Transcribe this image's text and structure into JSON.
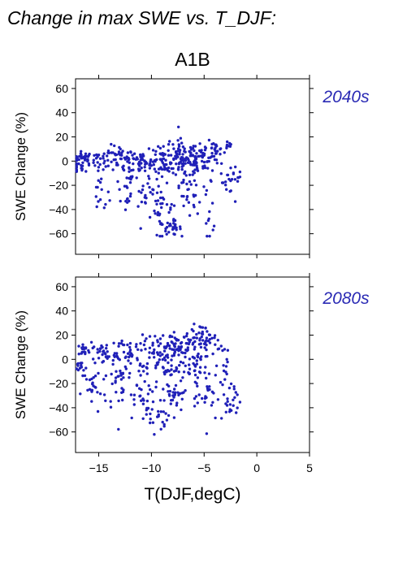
{
  "page_title": "Change in max SWE vs. T_DJF:",
  "scenario_title": "A1B",
  "xlabel": "T(DJF,degC)",
  "colors": {
    "points": "#2020b8",
    "panel_label": "#2a2ab4",
    "axes": "#000000"
  },
  "chart_data": [
    {
      "type": "scatter",
      "panel_label": "2040s",
      "xlabel": "T(DJF,degC)",
      "ylabel": "SWE Change (%)",
      "xlim": [
        -17.2,
        5
      ],
      "ylim": [
        -77,
        68
      ],
      "xticks": [
        -15,
        -10,
        -5,
        0,
        5
      ],
      "yticks": [
        -60,
        -40,
        -20,
        0,
        20,
        40,
        60
      ],
      "xtick_labels": [
        "−15",
        "−10",
        "−5",
        "0",
        "5"
      ],
      "ytick_labels": [
        "−60",
        "−40",
        "−20",
        "0",
        "20",
        "40",
        "60"
      ],
      "grid": false,
      "clusters": [
        {
          "x": -16.5,
          "y": 2,
          "sx": 0.5,
          "sy": 3,
          "n": 30
        },
        {
          "x": -16.8,
          "y": -7,
          "sx": 0.4,
          "sy": 2,
          "n": 10
        },
        {
          "x": -15.0,
          "y": 1,
          "sx": 0.6,
          "sy": 4,
          "n": 25
        },
        {
          "x": -14.8,
          "y": -28,
          "sx": 0.4,
          "sy": 8,
          "n": 15
        },
        {
          "x": -13.0,
          "y": 3,
          "sx": 0.7,
          "sy": 5,
          "n": 40
        },
        {
          "x": -12.5,
          "y": -20,
          "sx": 0.5,
          "sy": 12,
          "n": 25
        },
        {
          "x": -11.0,
          "y": 0,
          "sx": 0.8,
          "sy": 6,
          "n": 40
        },
        {
          "x": -10.5,
          "y": -28,
          "sx": 0.5,
          "sy": 12,
          "n": 25
        },
        {
          "x": -9.0,
          "y": 0,
          "sx": 0.8,
          "sy": 7,
          "n": 60
        },
        {
          "x": -9.0,
          "y": -40,
          "sx": 0.5,
          "sy": 10,
          "n": 30
        },
        {
          "x": -8.0,
          "y": -55,
          "sx": 0.4,
          "sy": 3,
          "n": 25
        },
        {
          "x": -7.0,
          "y": 2,
          "sx": 1.0,
          "sy": 8,
          "n": 80
        },
        {
          "x": -6.5,
          "y": -25,
          "sx": 0.6,
          "sy": 12,
          "n": 40
        },
        {
          "x": -5.0,
          "y": 3,
          "sx": 0.8,
          "sy": 6,
          "n": 50
        },
        {
          "x": -4.0,
          "y": 8,
          "sx": 0.4,
          "sy": 4,
          "n": 20
        },
        {
          "x": -4.5,
          "y": -35,
          "sx": 0.4,
          "sy": 12,
          "n": 15
        },
        {
          "x": -3.0,
          "y": -20,
          "sx": 0.4,
          "sy": 8,
          "n": 15
        },
        {
          "x": -2.7,
          "y": 13,
          "sx": 0.2,
          "sy": 2,
          "n": 8
        },
        {
          "x": -2.0,
          "y": -10,
          "sx": 0.3,
          "sy": 3,
          "n": 10
        }
      ]
    },
    {
      "type": "scatter",
      "panel_label": "2080s",
      "xlabel": "T(DJF,degC)",
      "ylabel": "SWE Change (%)",
      "xlim": [
        -17.2,
        5
      ],
      "ylim": [
        -77,
        68
      ],
      "xticks": [
        -15,
        -10,
        -5,
        0,
        5
      ],
      "yticks": [
        -60,
        -40,
        -20,
        0,
        20,
        40,
        60
      ],
      "xtick_labels": [
        "−15",
        "−10",
        "−5",
        "0",
        "5"
      ],
      "ytick_labels": [
        "−60",
        "−40",
        "−20",
        "0",
        "20",
        "40",
        "60"
      ],
      "grid": false,
      "clusters": [
        {
          "x": -16.5,
          "y": 8,
          "sx": 0.4,
          "sy": 3,
          "n": 20
        },
        {
          "x": -16.8,
          "y": -8,
          "sx": 0.4,
          "sy": 3,
          "n": 12
        },
        {
          "x": -15.5,
          "y": -25,
          "sx": 0.6,
          "sy": 10,
          "n": 25
        },
        {
          "x": -14.5,
          "y": 5,
          "sx": 0.6,
          "sy": 5,
          "n": 30
        },
        {
          "x": -13.0,
          "y": -15,
          "sx": 0.7,
          "sy": 15,
          "n": 40
        },
        {
          "x": -12.0,
          "y": 8,
          "sx": 0.6,
          "sy": 5,
          "n": 30
        },
        {
          "x": -11.0,
          "y": -20,
          "sx": 0.6,
          "sy": 15,
          "n": 35
        },
        {
          "x": -9.5,
          "y": 5,
          "sx": 0.8,
          "sy": 8,
          "n": 50
        },
        {
          "x": -9.5,
          "y": -45,
          "sx": 0.5,
          "sy": 8,
          "n": 25
        },
        {
          "x": -8.0,
          "y": -25,
          "sx": 0.7,
          "sy": 15,
          "n": 50
        },
        {
          "x": -7.0,
          "y": 10,
          "sx": 1.0,
          "sy": 8,
          "n": 70
        },
        {
          "x": -6.0,
          "y": -10,
          "sx": 0.7,
          "sy": 12,
          "n": 40
        },
        {
          "x": -5.0,
          "y": 18,
          "sx": 0.6,
          "sy": 5,
          "n": 35
        },
        {
          "x": -4.5,
          "y": -30,
          "sx": 0.5,
          "sy": 12,
          "n": 20
        },
        {
          "x": -3.0,
          "y": -5,
          "sx": 0.5,
          "sy": 10,
          "n": 20
        },
        {
          "x": -2.5,
          "y": -40,
          "sx": 0.3,
          "sy": 5,
          "n": 12
        },
        {
          "x": -2.0,
          "y": -30,
          "sx": 0.3,
          "sy": 5,
          "n": 10
        }
      ]
    }
  ]
}
